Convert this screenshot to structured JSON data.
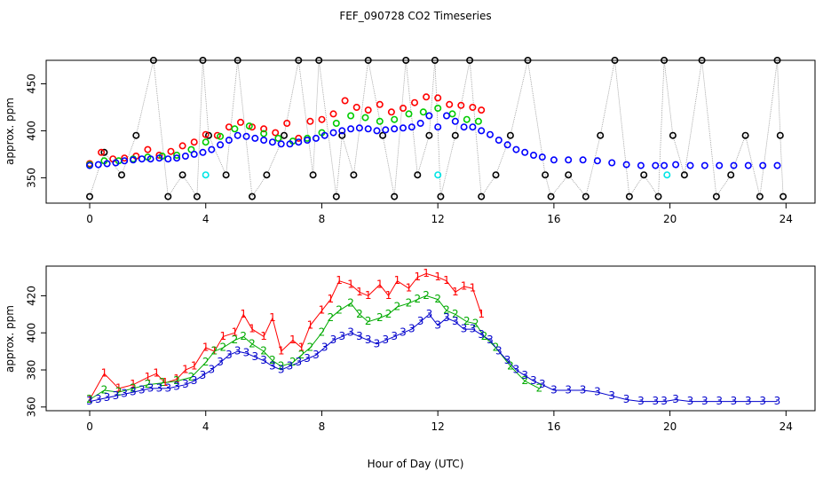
{
  "chart_data": [
    {
      "type": "scatter",
      "title": "FEF_090728  CO2 Timeseries",
      "xlabel": "",
      "ylabel": "approx. ppm",
      "xlim": [
        -1.5,
        25
      ],
      "ylim": [
        323,
        475
      ],
      "xticks": [
        0,
        4,
        8,
        12,
        16,
        20,
        24
      ],
      "yticks": [
        350,
        400,
        450
      ],
      "grid": false,
      "legend": "none",
      "series": [
        {
          "color": "#000000",
          "marker": "circle",
          "values_description": "black",
          "x": [
            0.0,
            0.5,
            1.1,
            1.6,
            2.2,
            2.7,
            3.2,
            3.7,
            3.9,
            4.1,
            4.7,
            5.1,
            5.6,
            6.1,
            6.7,
            7.2,
            7.7,
            7.9,
            8.5,
            8.7,
            9.1,
            9.6,
            10.1,
            10.5,
            10.9,
            11.3,
            11.7,
            11.9,
            12.1,
            12.6,
            13.1,
            13.5,
            14.0,
            14.5,
            15.1,
            15.7,
            15.9,
            16.5,
            17.1,
            17.6,
            18.1,
            18.6,
            19.1,
            19.6,
            19.8,
            20.1,
            20.5,
            21.1,
            21.6,
            22.1,
            22.6,
            23.1,
            23.7,
            23.8,
            23.9
          ],
          "y": [
            330,
            377,
            353,
            395,
            475,
            330,
            353,
            330,
            475,
            395,
            353,
            475,
            330,
            353,
            395,
            475,
            353,
            475,
            330,
            395,
            353,
            475,
            395,
            330,
            475,
            353,
            395,
            475,
            330,
            395,
            475,
            330,
            353,
            395,
            475,
            353,
            330,
            353,
            330,
            395,
            475,
            330,
            353,
            330,
            475,
            395,
            353,
            475,
            330,
            353,
            395,
            330,
            475,
            395,
            330
          ]
        },
        {
          "color": "#ff0000",
          "marker": "circle",
          "values_description": "red",
          "x": [
            0.0,
            0.4,
            0.8,
            1.2,
            1.6,
            2.0,
            2.4,
            2.8,
            3.2,
            3.6,
            4.0,
            4.4,
            4.8,
            5.2,
            5.6,
            6.0,
            6.4,
            6.8,
            7.2,
            7.6,
            8.0,
            8.4,
            8.8,
            9.2,
            9.6,
            10.0,
            10.4,
            10.8,
            11.2,
            11.6,
            12.0,
            12.4,
            12.8,
            13.2,
            13.5
          ],
          "y": [
            365,
            377,
            370,
            371,
            373,
            380,
            374,
            378,
            384,
            388,
            396,
            395,
            404,
            409,
            404,
            402,
            398,
            408,
            392,
            410,
            412,
            418,
            432,
            425,
            422,
            428,
            420,
            424,
            430,
            436,
            435,
            428,
            427,
            425,
            422
          ]
        },
        {
          "color": "#00cc00",
          "marker": "circle",
          "values_description": "green",
          "x": [
            0.0,
            0.5,
            1.0,
            1.5,
            2.0,
            2.5,
            3.0,
            3.5,
            4.0,
            4.5,
            5.0,
            5.5,
            6.0,
            6.5,
            7.0,
            7.5,
            8.0,
            8.5,
            9.0,
            9.5,
            10.0,
            10.5,
            11.0,
            11.5,
            12.0,
            12.5,
            13.0,
            13.4
          ],
          "y": [
            364,
            368,
            368,
            370,
            372,
            373,
            374,
            380,
            388,
            394,
            402,
            405,
            397,
            392,
            389,
            392,
            398,
            408,
            416,
            414,
            410,
            412,
            418,
            420,
            424,
            418,
            412,
            410
          ]
        },
        {
          "color": "#0000ff",
          "marker": "circle",
          "values_description": "blue",
          "x": [
            0.0,
            0.3,
            0.6,
            0.9,
            1.2,
            1.5,
            1.8,
            2.1,
            2.4,
            2.7,
            3.0,
            3.3,
            3.6,
            3.9,
            4.2,
            4.5,
            4.8,
            5.1,
            5.4,
            5.7,
            6.0,
            6.3,
            6.6,
            6.9,
            7.2,
            7.5,
            7.8,
            8.1,
            8.4,
            8.7,
            9.0,
            9.3,
            9.6,
            9.9,
            10.2,
            10.5,
            10.8,
            11.1,
            11.4,
            11.7,
            12.0,
            12.3,
            12.6,
            12.9,
            13.2,
            13.5,
            13.8,
            14.1,
            14.4,
            14.7,
            15.0,
            15.3,
            15.6,
            16.0,
            16.5,
            17.0,
            17.5,
            18.0,
            18.5,
            19.0,
            19.5,
            19.8,
            20.2,
            20.7,
            21.2,
            21.7,
            22.2,
            22.7,
            23.2,
            23.7
          ],
          "y": [
            363,
            364,
            365,
            366,
            368,
            369,
            370,
            370,
            371,
            370,
            371,
            373,
            375,
            377,
            380,
            385,
            390,
            395,
            394,
            392,
            390,
            388,
            386,
            386,
            388,
            390,
            392,
            395,
            398,
            400,
            402,
            403,
            402,
            400,
            401,
            402,
            403,
            404,
            408,
            416,
            404,
            416,
            410,
            404,
            404,
            400,
            396,
            390,
            385,
            380,
            377,
            374,
            372,
            369,
            369,
            369,
            368,
            366,
            364,
            363,
            363,
            363,
            364,
            363,
            363,
            363,
            363,
            363,
            363,
            363
          ]
        },
        {
          "color": "#00e5e5",
          "marker": "circle",
          "values_description": "cyan",
          "x": [
            4.0,
            12.0,
            19.9
          ],
          "y": [
            353,
            353,
            353
          ]
        }
      ]
    },
    {
      "type": "line",
      "title": "",
      "xlabel": "Hour of Day (UTC)",
      "ylabel": "approx. ppm",
      "xlim": [
        -1.5,
        25
      ],
      "ylim": [
        358,
        436
      ],
      "xticks": [
        0,
        4,
        8,
        12,
        16,
        20,
        24
      ],
      "yticks": [
        360,
        380,
        400,
        420
      ],
      "grid": false,
      "legend": "none",
      "series": [
        {
          "marker_label": "1",
          "color": "#ff0000",
          "x": [
            0.0,
            0.5,
            1.0,
            1.5,
            2.0,
            2.3,
            2.6,
            3.0,
            3.3,
            3.6,
            4.0,
            4.3,
            4.6,
            5.0,
            5.3,
            5.6,
            6.0,
            6.3,
            6.6,
            7.0,
            7.3,
            7.6,
            8.0,
            8.3,
            8.6,
            9.0,
            9.3,
            9.6,
            10.0,
            10.3,
            10.6,
            11.0,
            11.3,
            11.6,
            12.0,
            12.3,
            12.6,
            12.9,
            13.2,
            13.5
          ],
          "y": [
            364,
            378,
            370,
            372,
            376,
            378,
            373,
            375,
            380,
            382,
            392,
            390,
            398,
            400,
            410,
            402,
            398,
            408,
            390,
            396,
            392,
            404,
            412,
            418,
            428,
            426,
            422,
            420,
            426,
            420,
            428,
            424,
            430,
            432,
            430,
            428,
            422,
            425,
            424,
            410
          ]
        },
        {
          "marker_label": "2",
          "color": "#00aa00",
          "x": [
            0.0,
            0.5,
            1.0,
            1.5,
            2.0,
            2.5,
            3.0,
            3.5,
            4.0,
            4.3,
            4.6,
            5.0,
            5.3,
            5.6,
            6.0,
            6.3,
            6.6,
            7.0,
            7.3,
            7.6,
            8.0,
            8.3,
            8.6,
            9.0,
            9.3,
            9.6,
            10.0,
            10.3,
            10.6,
            11.0,
            11.3,
            11.6,
            12.0,
            12.3,
            12.6,
            13.0,
            13.3,
            13.6,
            14.0,
            14.5,
            15.0,
            15.5
          ],
          "y": [
            364,
            369,
            368,
            370,
            372,
            373,
            374,
            376,
            384,
            390,
            392,
            396,
            398,
            394,
            390,
            385,
            382,
            384,
            388,
            392,
            400,
            408,
            412,
            416,
            410,
            406,
            408,
            410,
            414,
            416,
            418,
            420,
            418,
            412,
            410,
            406,
            405,
            398,
            392,
            382,
            374,
            370
          ]
        },
        {
          "marker_label": "3",
          "color": "#0000cc",
          "x": [
            0.0,
            0.3,
            0.6,
            0.9,
            1.2,
            1.5,
            1.8,
            2.1,
            2.4,
            2.7,
            3.0,
            3.3,
            3.6,
            3.9,
            4.2,
            4.5,
            4.8,
            5.1,
            5.4,
            5.7,
            6.0,
            6.3,
            6.6,
            6.9,
            7.2,
            7.5,
            7.8,
            8.1,
            8.4,
            8.7,
            9.0,
            9.3,
            9.6,
            9.9,
            10.2,
            10.5,
            10.8,
            11.1,
            11.4,
            11.7,
            12.0,
            12.3,
            12.6,
            12.9,
            13.2,
            13.5,
            13.8,
            14.1,
            14.4,
            14.7,
            15.0,
            15.3,
            15.6,
            16.0,
            16.5,
            17.0,
            17.5,
            18.0,
            18.5,
            19.0,
            19.5,
            19.8,
            20.2,
            20.7,
            21.2,
            21.7,
            22.2,
            22.7,
            23.2,
            23.7
          ],
          "y": [
            363,
            364,
            365,
            366,
            367,
            368,
            369,
            370,
            370,
            370,
            371,
            372,
            374,
            377,
            380,
            384,
            388,
            390,
            389,
            387,
            385,
            382,
            380,
            382,
            384,
            386,
            388,
            392,
            396,
            398,
            400,
            398,
            396,
            394,
            396,
            398,
            400,
            402,
            406,
            410,
            404,
            408,
            406,
            402,
            402,
            399,
            396,
            390,
            385,
            380,
            377,
            374,
            372,
            369,
            369,
            369,
            368,
            366,
            364,
            363,
            363,
            363,
            364,
            363,
            363,
            363,
            363,
            363,
            363,
            363
          ]
        }
      ]
    }
  ]
}
